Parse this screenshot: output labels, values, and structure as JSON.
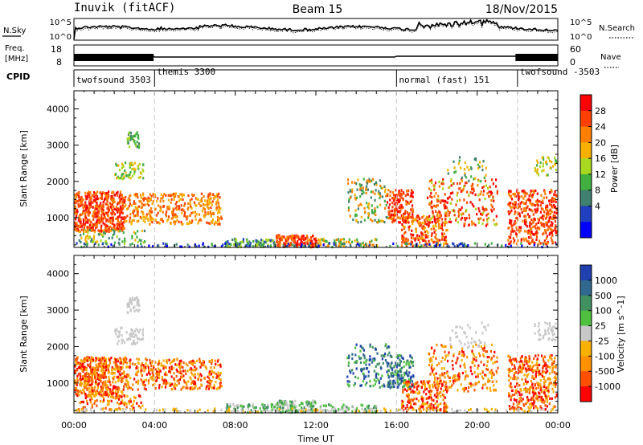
{
  "header": {
    "station": "Inuvik (fitACF)",
    "beam": "Beam 15",
    "date": "18/Nov/2015"
  },
  "param_panels": {
    "nsky_label": "N.Sky",
    "nsearch_label": "N.Search",
    "nsky_ticks": [
      "10^5",
      "10^0"
    ],
    "freq_label_1": "Freq.",
    "freq_label_2": "[MHz]",
    "freq_ticks": [
      "18",
      "8"
    ],
    "nave_label": "Nave",
    "nave_ticks": [
      "60",
      "0"
    ],
    "cpid_label": "CPID"
  },
  "cpid_segments": [
    {
      "label": "twofsound 3503",
      "start_hour": 0.0
    },
    {
      "label": "themis 3300",
      "start_hour": 4.0
    },
    {
      "label": "normal (fast) 151",
      "start_hour": 16.0
    },
    {
      "label": "twofsound -3503",
      "start_hour": 22.0
    }
  ],
  "chart_data": [
    {
      "type": "heatmap",
      "title": "Power",
      "ylabel": "Slant Range [km]",
      "xlabel": "Time UT",
      "xlim_hours": [
        0,
        24
      ],
      "ylim": [
        180,
        4500
      ],
      "yticks": [
        1000,
        2000,
        3000,
        4000
      ],
      "xtick_labels": [
        "00:00",
        "04:00",
        "08:00",
        "12:00",
        "16:00",
        "20:00",
        "00:00"
      ],
      "colorbar": {
        "label": "Power [dB]",
        "ticks": [
          "28",
          "24",
          "20",
          "16",
          "12",
          "8",
          "4"
        ],
        "colors": [
          "#ff0000",
          "#ff4000",
          "#ff8000",
          "#f8b000",
          "#a8d820",
          "#40b040",
          "#408070",
          "#2040c0",
          "#0000ff"
        ]
      }
    },
    {
      "type": "heatmap",
      "title": "Velocity",
      "ylabel": "Slant Range [km]",
      "xlabel": "Time UT",
      "xlim_hours": [
        0,
        24
      ],
      "ylim": [
        180,
        4500
      ],
      "yticks": [
        1000,
        2000,
        3000,
        4000
      ],
      "xtick_labels": [
        "00:00",
        "04:00",
        "08:00",
        "12:00",
        "16:00",
        "20:00",
        "00:00"
      ],
      "colorbar": {
        "label": "Velocity [m s^-1]",
        "ticks": [
          "1000",
          "500",
          "100",
          "25",
          "-25",
          "-100",
          "-500",
          "-1000"
        ],
        "colors": [
          "#2040b0",
          "#306890",
          "#409060",
          "#50c040",
          "#c8c8c8",
          "#f8b000",
          "#ff9000",
          "#ff5000",
          "#ff0000"
        ]
      }
    }
  ],
  "xaxis_title": "Time UT"
}
